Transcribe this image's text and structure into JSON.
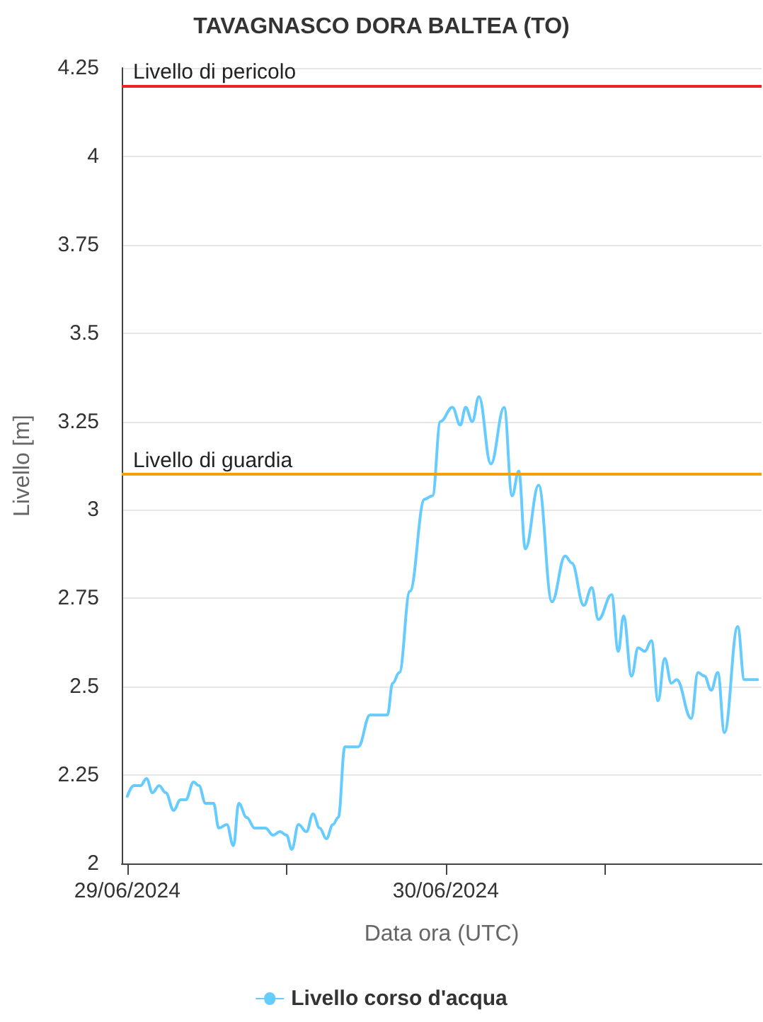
{
  "chart_data": {
    "type": "line",
    "title": "TAVAGNASCO DORA BALTEA (TO)",
    "xlabel": "Data ora (UTC)",
    "ylabel": "Livello [m]",
    "x": [
      "2024-06-29T00:00",
      "2024-06-29T00:30",
      "2024-06-29T01:00",
      "2024-06-29T01:27",
      "2024-06-29T01:54",
      "2024-06-29T02:24",
      "2024-06-29T02:54",
      "2024-06-29T03:30",
      "2024-06-29T04:00",
      "2024-06-29T04:24",
      "2024-06-29T05:00",
      "2024-06-29T05:24",
      "2024-06-29T05:54",
      "2024-06-29T06:30",
      "2024-06-29T06:54",
      "2024-06-29T07:30",
      "2024-06-29T08:00",
      "2024-06-29T08:24",
      "2024-06-29T09:00",
      "2024-06-29T09:36",
      "2024-06-29T10:24",
      "2024-06-29T11:00",
      "2024-06-29T11:30",
      "2024-06-29T12:00",
      "2024-06-29T12:24",
      "2024-06-29T12:54",
      "2024-06-29T13:30",
      "2024-06-29T14:00",
      "2024-06-29T14:30",
      "2024-06-29T15:00",
      "2024-06-29T15:30",
      "2024-06-29T15:54",
      "2024-06-29T16:24",
      "2024-06-29T16:54",
      "2024-06-29T17:24",
      "2024-06-29T18:18",
      "2024-06-29T19:36",
      "2024-06-29T20:00",
      "2024-06-29T20:30",
      "2024-06-29T21:18",
      "2024-06-29T22:24",
      "2024-06-29T23:00",
      "2024-06-29T23:36",
      "2024-06-30T00:30",
      "2024-06-30T01:06",
      "2024-06-30T01:30",
      "2024-06-30T02:00",
      "2024-06-30T02:30",
      "2024-06-30T03:24",
      "2024-06-30T04:24",
      "2024-06-30T05:00",
      "2024-06-30T05:30",
      "2024-06-30T06:00",
      "2024-06-30T07:00",
      "2024-06-30T08:00",
      "2024-06-30T09:00",
      "2024-06-30T09:30",
      "2024-06-30T10:24",
      "2024-06-30T11:00",
      "2024-06-30T11:30",
      "2024-06-30T12:30",
      "2024-06-30T13:00",
      "2024-06-30T13:24",
      "2024-06-30T14:00",
      "2024-06-30T14:30",
      "2024-06-30T15:00",
      "2024-06-30T15:30",
      "2024-06-30T16:00",
      "2024-06-30T16:30",
      "2024-06-30T17:00",
      "2024-06-30T17:24",
      "2024-06-30T18:30",
      "2024-06-30T19:00",
      "2024-06-30T19:30",
      "2024-06-30T20:00",
      "2024-06-30T20:30",
      "2024-06-30T21:00",
      "2024-06-30T22:00",
      "2024-06-30T22:30",
      "2024-06-30T23:30"
    ],
    "series": [
      {
        "name": "Livello corso d'acqua",
        "color": "#66ccff",
        "values": [
          2.19,
          2.22,
          2.22,
          2.24,
          2.2,
          2.22,
          2.2,
          2.15,
          2.18,
          2.18,
          2.23,
          2.22,
          2.17,
          2.17,
          2.1,
          2.11,
          2.05,
          2.17,
          2.13,
          2.1,
          2.1,
          2.08,
          2.09,
          2.08,
          2.04,
          2.11,
          2.09,
          2.14,
          2.1,
          2.07,
          2.11,
          2.13,
          2.33,
          2.33,
          2.33,
          2.42,
          2.42,
          2.51,
          2.54,
          2.77,
          3.03,
          3.04,
          3.25,
          3.29,
          3.24,
          3.29,
          3.25,
          3.32,
          3.13,
          3.29,
          3.04,
          3.11,
          2.89,
          3.07,
          2.74,
          2.87,
          2.85,
          2.73,
          2.78,
          2.69,
          2.76,
          2.6,
          2.7,
          2.53,
          2.61,
          2.6,
          2.63,
          2.46,
          2.58,
          2.51,
          2.52,
          2.41,
          2.54,
          2.53,
          2.49,
          2.54,
          2.37,
          2.67,
          2.52,
          2.52
        ]
      }
    ],
    "xlim": [
      "2024-06-28T23:35",
      "2024-06-30T23:48"
    ],
    "xticks": [
      {
        "value": "2024-06-29T00:00",
        "label": "29/06/2024"
      },
      {
        "value": "2024-06-29T12:00",
        "label": null
      },
      {
        "value": "2024-06-30T00:00",
        "label": "30/06/2024"
      },
      {
        "value": "2024-06-30T12:00",
        "label": null
      }
    ],
    "ylim": [
      2,
      4.25
    ],
    "yticks": [
      2,
      2.25,
      2.5,
      2.75,
      3,
      3.25,
      3.5,
      3.75,
      4,
      4.25
    ],
    "ref_lines": [
      {
        "axis": "y",
        "value": 4.2,
        "label": "Livello di pericolo",
        "color": "#ee2222"
      },
      {
        "axis": "y",
        "value": 3.1,
        "label": "Livello di guardia",
        "color": "#f5a00a"
      }
    ],
    "grid": "y",
    "legend": "bottom"
  }
}
